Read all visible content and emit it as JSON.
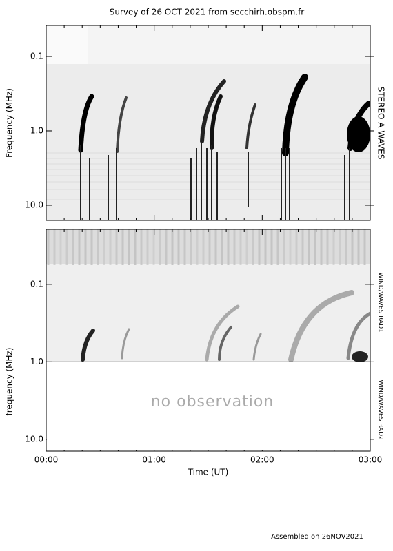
{
  "chart_data": [
    {
      "type": "spectrogram",
      "title": "Survey of 26 OCT 2021 from secchirh.obspm.fr",
      "ylabel": "Frequency (MHz)",
      "right_labels": [
        "STEREO A WAVES"
      ],
      "log_y": true,
      "ylim": [
        0.0383,
        16
      ],
      "yticks": [
        0.1,
        {
          "value": 1,
          "label": "1.0"
        },
        {
          "value": 10,
          "label": "10.0"
        }
      ],
      "xlim": [
        0,
        180
      ],
      "xticks": [
        0,
        60,
        120,
        180
      ],
      "minor_xticks": [
        10,
        20,
        30,
        40,
        50,
        70,
        80,
        90,
        100,
        110,
        130,
        140,
        150,
        160,
        170
      ]
    },
    {
      "type": "spectrogram",
      "ylabel": "frequency (MHz)",
      "xlabel": "Time (UT)",
      "right_labels": [
        "WIND/WAVES RAD1",
        "WIND/WAVES RAD2"
      ],
      "annotation": "no observation",
      "log_y": true,
      "ylim": [
        0.0195,
        14.2
      ],
      "yticks": [
        0.1,
        {
          "value": 1,
          "label": "1.0"
        },
        {
          "value": 10,
          "label": "10.0"
        }
      ],
      "xlim": [
        0,
        180
      ],
      "xticks": [
        {
          "value": 0,
          "label": "00:00"
        },
        {
          "value": 60,
          "label": "01:00"
        },
        {
          "value": 120,
          "label": "02:00"
        },
        {
          "value": 180,
          "label": "03:00"
        }
      ],
      "minor_xticks": [
        10,
        20,
        30,
        40,
        50,
        70,
        80,
        90,
        100,
        110,
        130,
        140,
        150,
        160,
        170
      ]
    }
  ],
  "footer": "Assembled on 26NOV2021"
}
